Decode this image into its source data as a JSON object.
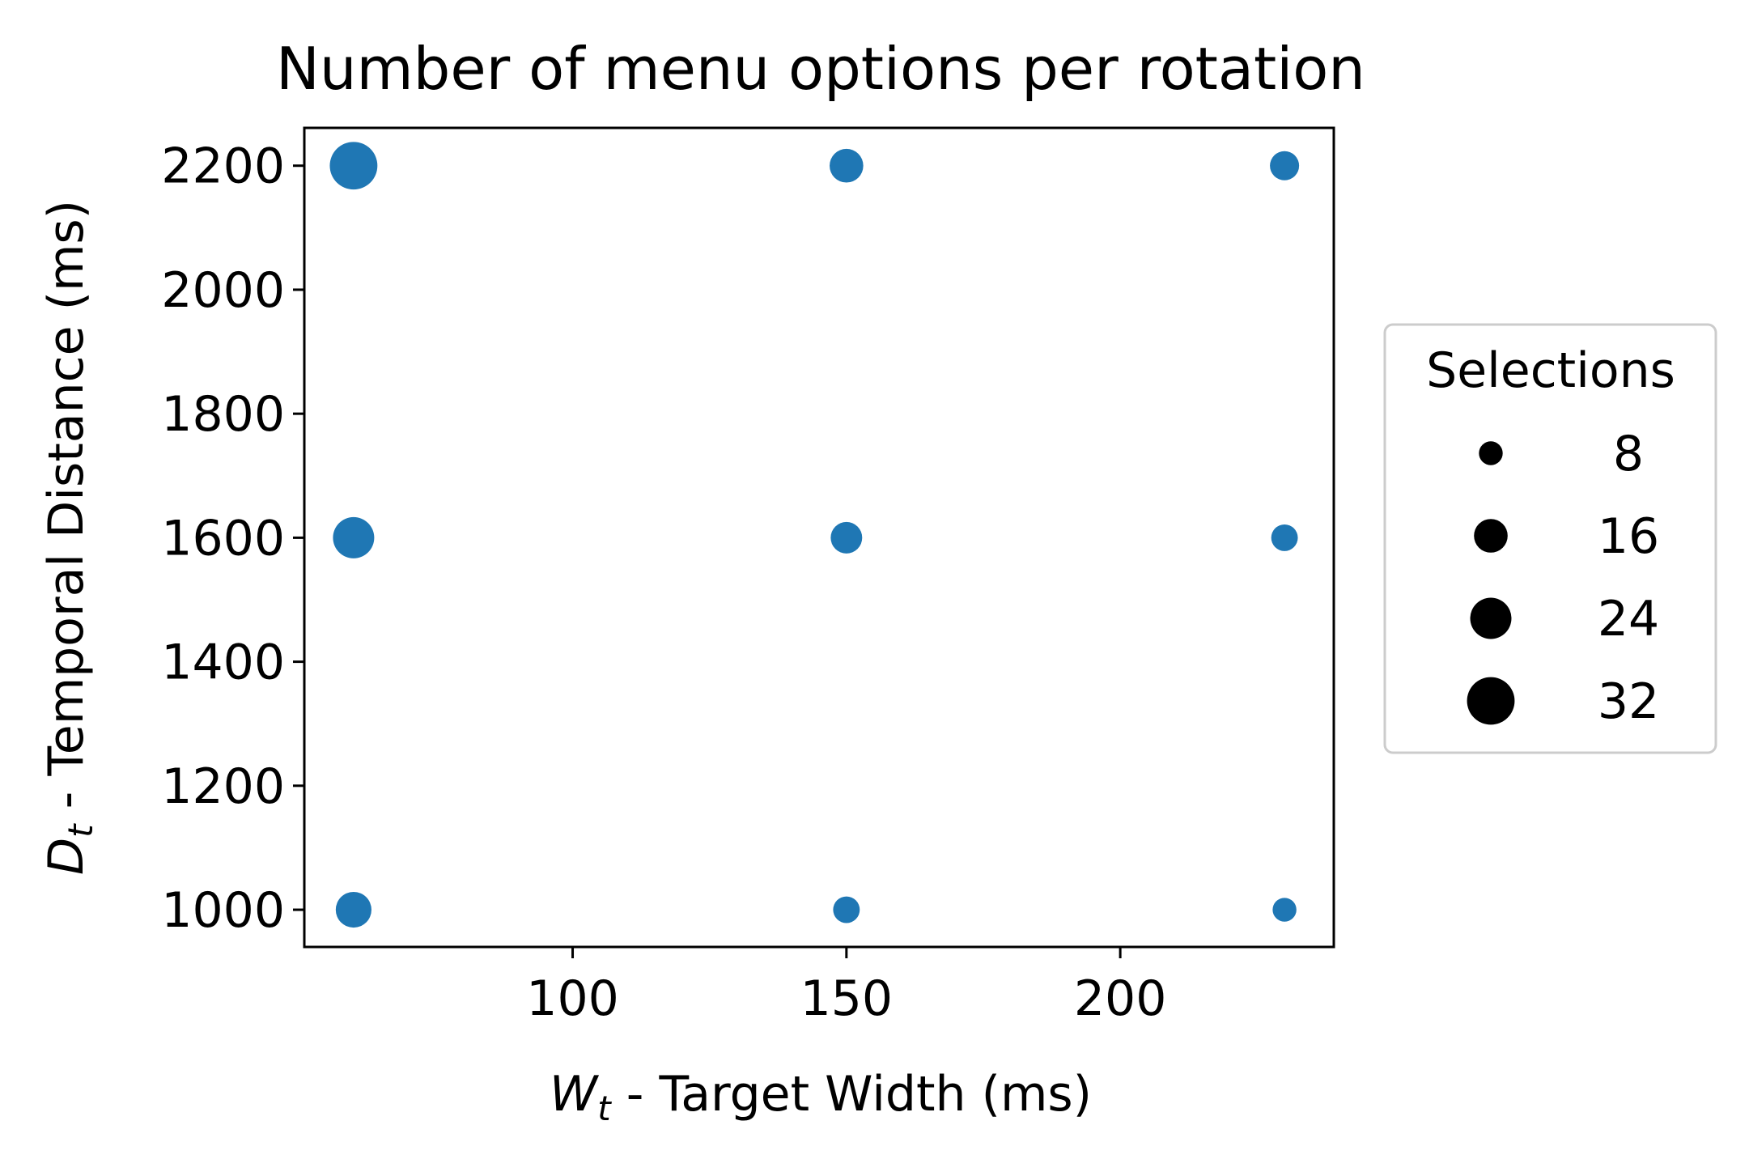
{
  "chart_data": {
    "type": "scatter",
    "title": "Number of menu options per rotation",
    "xlabel": {
      "main": "W",
      "sub": "t",
      "rest": " - Target Width (ms)"
    },
    "ylabel": {
      "main": "D",
      "sub": "t",
      "rest": " - Temporal Distance (ms)"
    },
    "xlim": [
      51,
      239
    ],
    "ylim": [
      940,
      2261
    ],
    "xticks": [
      100,
      150,
      200
    ],
    "yticks": [
      1000,
      1200,
      1400,
      1600,
      1800,
      2000,
      2200
    ],
    "grid": false,
    "marker_color": "#1f77b4",
    "points": [
      {
        "x": 60,
        "y": 2200,
        "size": 32
      },
      {
        "x": 150,
        "y": 2200,
        "size": 16
      },
      {
        "x": 230,
        "y": 2200,
        "size": 12
      },
      {
        "x": 60,
        "y": 1600,
        "size": 24
      },
      {
        "x": 150,
        "y": 1600,
        "size": 14
      },
      {
        "x": 230,
        "y": 1600,
        "size": 10
      },
      {
        "x": 60,
        "y": 1000,
        "size": 18
      },
      {
        "x": 150,
        "y": 1000,
        "size": 10
      },
      {
        "x": 230,
        "y": 1000,
        "size": 8
      }
    ],
    "legend": {
      "title": "Selections",
      "placement": "center-right-outside",
      "color": "#000000",
      "entries": [
        {
          "label": "8",
          "size": 8
        },
        {
          "label": "16",
          "size": 16
        },
        {
          "label": "24",
          "size": 24
        },
        {
          "label": "32",
          "size": 32
        }
      ]
    }
  }
}
